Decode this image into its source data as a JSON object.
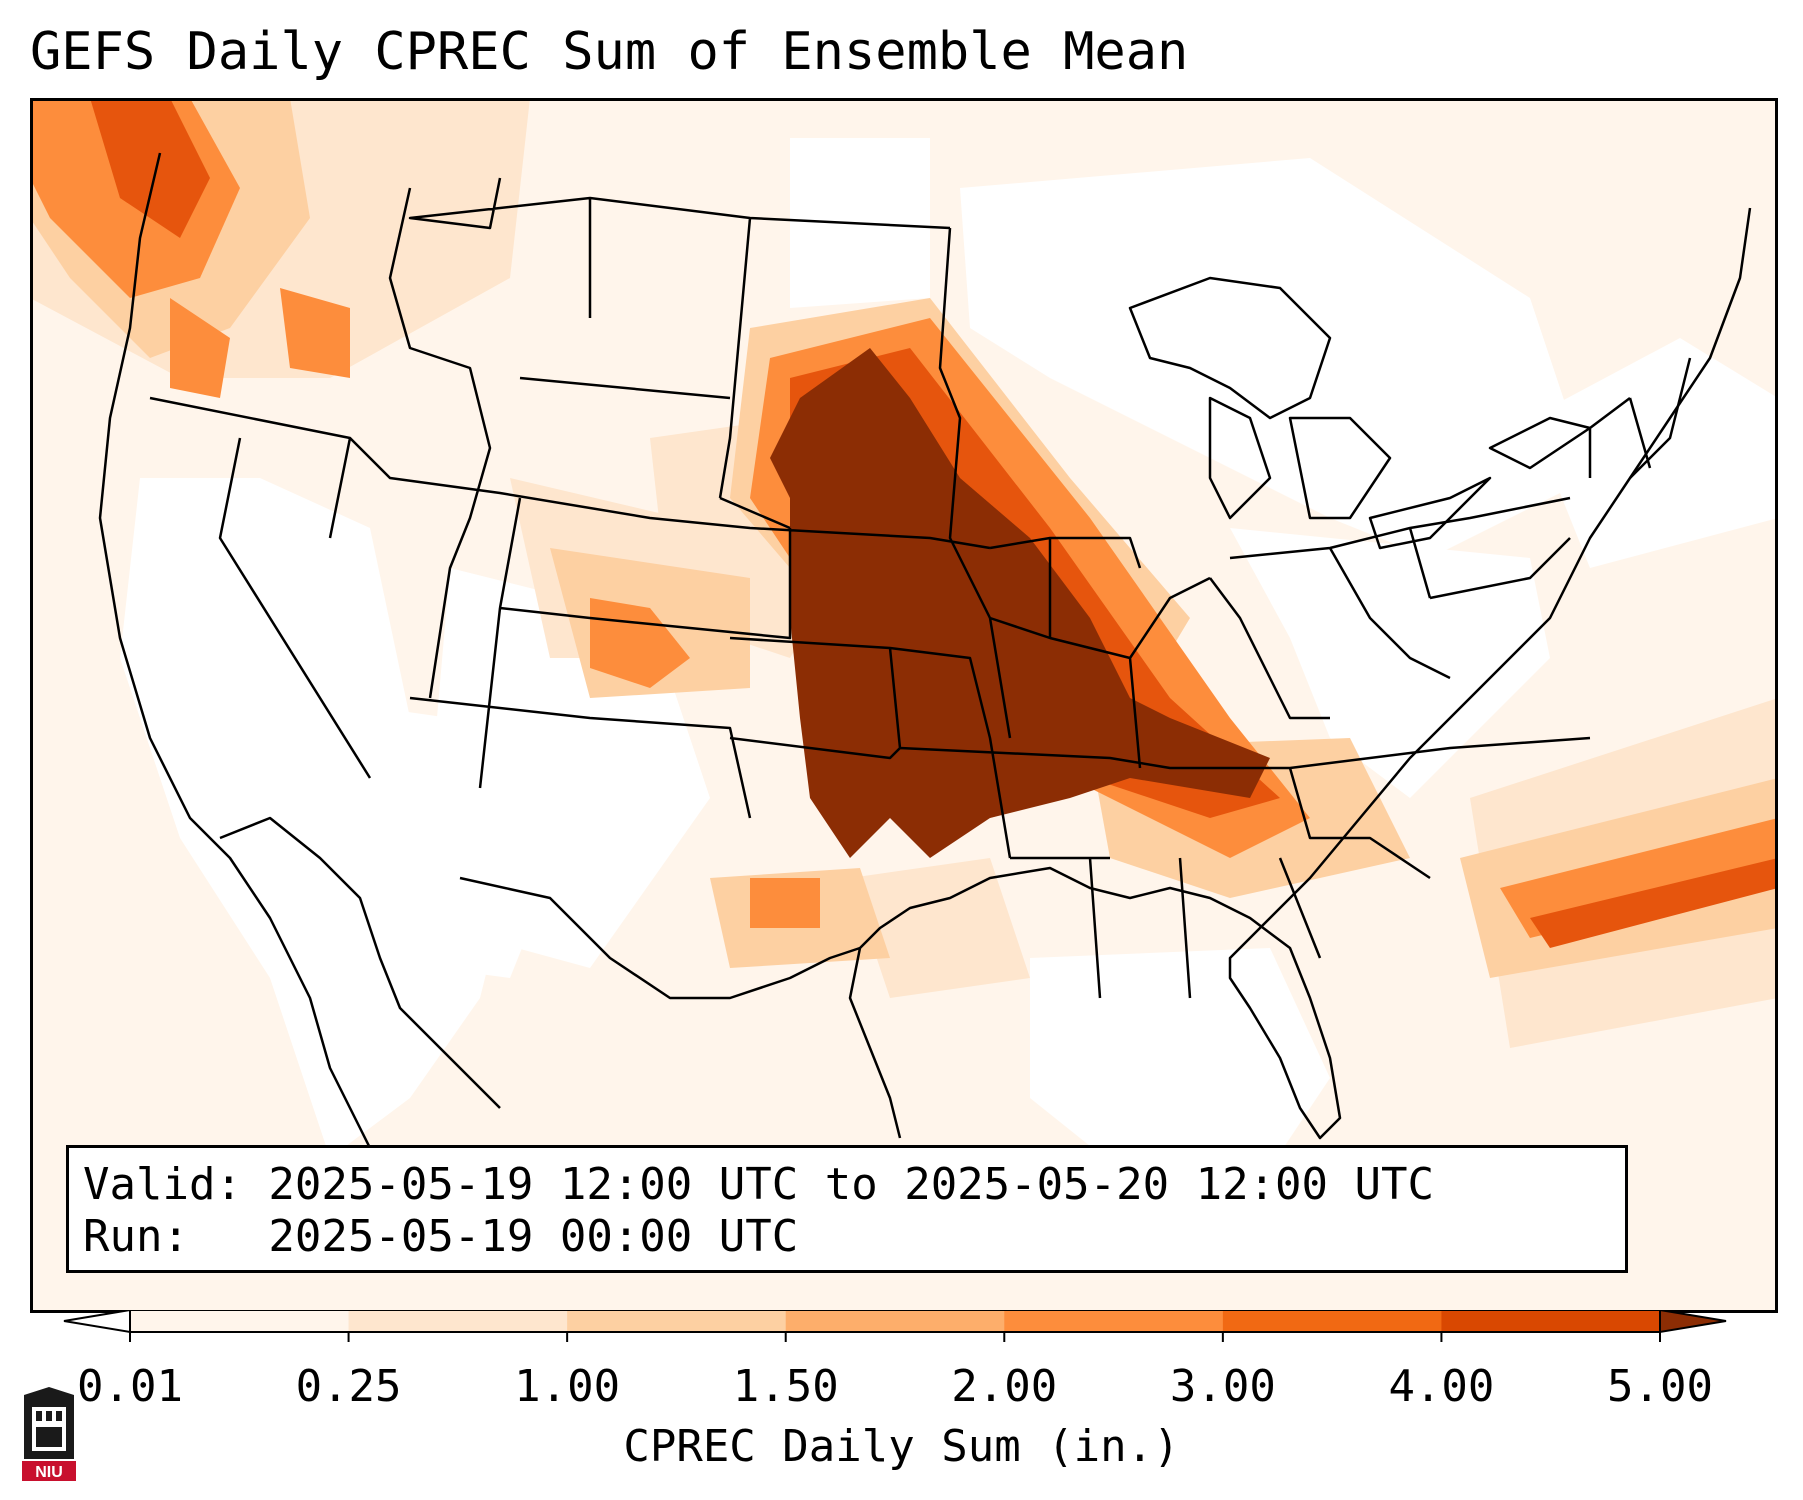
{
  "title": "GEFS Daily CPREC Sum of Ensemble Mean",
  "info": {
    "valid": "Valid: 2025-05-19 12:00 UTC to 2025-05-20 12:00 UTC",
    "run": "Run:   2025-05-19 00:00 UTC"
  },
  "colorbar": {
    "label": "CPREC Daily Sum (in.)",
    "ticks": [
      "0.01",
      "0.25",
      "1.00",
      "1.50",
      "2.00",
      "3.00",
      "4.00",
      "5.00"
    ],
    "colors": [
      "#fff5eb",
      "#fee6ce",
      "#fdd0a2",
      "#fdae6b",
      "#fd8d3c",
      "#f16913",
      "#d94801",
      "#8c2d04"
    ],
    "under_color": "#ffffff",
    "over_color": "#8c2d04"
  },
  "logo": {
    "text": "NIU"
  },
  "colors": {
    "light": "#fff5eb",
    "pale": "#fee6ce",
    "tan": "#fdd0a2",
    "orange": "#fd8d3c",
    "deep_orange": "#e6550d",
    "brown": "#8c2d04"
  }
}
